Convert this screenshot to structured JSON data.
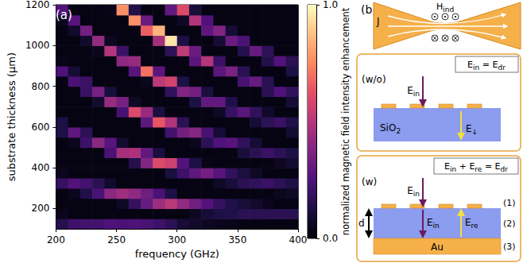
{
  "chart_data": {
    "type": "heatmap",
    "annotation": "(a)",
    "x_label": "frequency (GHz)",
    "y_label": "substrate thickness (μm)",
    "xlim": [
      200,
      400
    ],
    "xticks": [
      200,
      250,
      300,
      350,
      400
    ],
    "ylim": [
      100,
      1200
    ],
    "yticks": [
      200,
      400,
      600,
      800,
      1000,
      1200
    ],
    "grid": false,
    "x": [
      205,
      215,
      225,
      235,
      245,
      255,
      265,
      275,
      285,
      295,
      305,
      315,
      325,
      335,
      345,
      355,
      365,
      375,
      385,
      395
    ],
    "y": [
      125,
      175,
      225,
      275,
      325,
      375,
      425,
      475,
      525,
      575,
      625,
      675,
      725,
      775,
      825,
      875,
      925,
      975,
      1025,
      1075,
      1125,
      1175
    ],
    "values": [
      [
        0.15,
        0.05,
        0.03,
        0.03,
        0.19,
        0.05,
        0.03,
        0.03,
        0.03,
        0.13,
        0.13,
        0.03,
        0.03,
        0.03,
        0.03,
        0.25,
        0.04,
        0.03,
        0.03,
        0.03,
        0.05,
        0.26
      ],
      [
        0.21,
        0.03,
        0.03,
        0.05,
        0.26,
        0.03,
        0.03,
        0.03,
        0.05,
        0.29,
        0.03,
        0.03,
        0.03,
        0.03,
        0.24,
        0.1,
        0.03,
        0.03,
        0.03,
        0.08,
        0.27,
        0.03
      ],
      [
        0.22,
        0.03,
        0.03,
        0.14,
        0.22,
        0.03,
        0.03,
        0.03,
        0.21,
        0.17,
        0.03,
        0.03,
        0.03,
        0.2,
        0.2,
        0.03,
        0.03,
        0.03,
        0.08,
        0.34,
        0.03,
        0.03
      ],
      [
        0.22,
        0.03,
        0.03,
        0.24,
        0.16,
        0.03,
        0.03,
        0.03,
        0.4,
        0.03,
        0.03,
        0.03,
        0.09,
        0.35,
        0.03,
        0.03,
        0.03,
        0.05,
        0.42,
        0.03,
        0.03,
        0.03
      ],
      [
        0.25,
        0.03,
        0.03,
        0.4,
        0.08,
        0.03,
        0.03,
        0.24,
        0.27,
        0.03,
        0.03,
        0.03,
        0.43,
        0.11,
        0.03,
        0.03,
        0.03,
        0.5,
        0.06,
        0.03,
        0.03,
        0.04
      ],
      [
        0.24,
        0.03,
        0.07,
        0.45,
        0.03,
        0.03,
        0.03,
        0.46,
        0.09,
        0.03,
        0.03,
        0.23,
        0.35,
        0.03,
        0.03,
        0.03,
        0.41,
        0.2,
        0.03,
        0.03,
        0.03,
        0.77
      ],
      [
        0.25,
        0.03,
        0.19,
        0.41,
        0.03,
        0.03,
        0.15,
        0.48,
        0.03,
        0.03,
        0.03,
        0.6,
        0.07,
        0.03,
        0.03,
        0.27,
        0.43,
        0.03,
        0.03,
        0.03,
        0.77,
        0.14
      ],
      [
        0.23,
        0.03,
        0.31,
        0.33,
        0.03,
        0.03,
        0.38,
        0.3,
        0.03,
        0.03,
        0.29,
        0.43,
        0.03,
        0.03,
        0.05,
        0.7,
        0.03,
        0.03,
        0.03,
        0.66,
        0.32,
        0.03
      ],
      [
        0.21,
        0.03,
        0.44,
        0.24,
        0.03,
        0.03,
        0.6,
        0.12,
        0.03,
        0.03,
        0.64,
        0.12,
        0.03,
        0.03,
        0.52,
        0.28,
        0.03,
        0.03,
        0.46,
        0.85,
        0.03,
        0.03
      ],
      [
        0.17,
        0.03,
        0.51,
        0.13,
        0.03,
        0.12,
        0.56,
        0.03,
        0.03,
        0.22,
        0.49,
        0.03,
        0.03,
        0.18,
        0.57,
        0.03,
        0.03,
        0.17,
        0.95,
        0.03,
        0.03,
        0.3
      ],
      [
        0.1,
        0.03,
        0.42,
        0.03,
        0.03,
        0.21,
        0.26,
        0.03,
        0.03,
        0.34,
        0.16,
        0.03,
        0.03,
        0.38,
        0.13,
        0.03,
        0.03,
        0.53,
        0.13,
        0.03,
        0.07,
        0.6
      ],
      [
        0.08,
        0.06,
        0.34,
        0.03,
        0.03,
        0.29,
        0.13,
        0.03,
        0.05,
        0.39,
        0.03,
        0.03,
        0.13,
        0.34,
        0.03,
        0.03,
        0.28,
        0.32,
        0.03,
        0.03,
        0.49,
        0.11
      ],
      [
        0.06,
        0.1,
        0.26,
        0.03,
        0.03,
        0.34,
        0.04,
        0.03,
        0.17,
        0.23,
        0.03,
        0.03,
        0.3,
        0.12,
        0.03,
        0.03,
        0.5,
        0.03,
        0.03,
        0.29,
        0.25,
        0.03
      ],
      [
        0.05,
        0.13,
        0.19,
        0.03,
        0.07,
        0.27,
        0.03,
        0.03,
        0.25,
        0.1,
        0.03,
        0.07,
        0.3,
        0.03,
        0.03,
        0.28,
        0.2,
        0.03,
        0.1,
        0.38,
        0.03,
        0.03
      ],
      [
        0.04,
        0.14,
        0.14,
        0.03,
        0.11,
        0.18,
        0.03,
        0.03,
        0.27,
        0.03,
        0.03,
        0.19,
        0.14,
        0.03,
        0.03,
        0.36,
        0.03,
        0.03,
        0.32,
        0.1,
        0.03,
        0.03
      ],
      [
        0.03,
        0.16,
        0.11,
        0.03,
        0.16,
        0.12,
        0.03,
        0.11,
        0.18,
        0.03,
        0.03,
        0.28,
        0.03,
        0.03,
        0.23,
        0.16,
        0.03,
        0.15,
        0.24,
        0.03,
        0.03,
        0.03
      ],
      [
        0.03,
        0.16,
        0.08,
        0.03,
        0.18,
        0.07,
        0.03,
        0.16,
        0.1,
        0.03,
        0.1,
        0.18,
        0.03,
        0.03,
        0.31,
        0.03,
        0.03,
        0.31,
        0.03,
        0.03,
        0.03,
        0.03
      ],
      [
        0.03,
        0.16,
        0.05,
        0.03,
        0.2,
        0.03,
        0.03,
        0.2,
        0.03,
        0.03,
        0.17,
        0.08,
        0.03,
        0.16,
        0.16,
        0.03,
        0.15,
        0.17,
        0.03,
        0.03,
        0.03,
        0.03
      ],
      [
        0.03,
        0.17,
        0.03,
        0.05,
        0.17,
        0.03,
        0.06,
        0.17,
        0.03,
        0.03,
        0.2,
        0.03,
        0.03,
        0.25,
        0.03,
        0.03,
        0.26,
        0.03,
        0.03,
        0.03,
        0.03,
        0.03
      ],
      [
        0.03,
        0.16,
        0.03,
        0.07,
        0.13,
        0.03,
        0.09,
        0.13,
        0.03,
        0.09,
        0.14,
        0.03,
        0.1,
        0.18,
        0.03,
        0.13,
        0.16,
        0.03,
        0.03,
        0.03,
        0.03,
        0.03
      ]
    ],
    "colorbar": {
      "label": "normalized magnetic field intensity enhancement",
      "range": [
        0,
        1
      ],
      "ticks": [
        {
          "value": 0,
          "label": "0.0"
        },
        {
          "value": 1,
          "label": "1.0"
        }
      ]
    }
  },
  "panel_b": {
    "label": "(b)",
    "bowtie": {
      "current": "J",
      "field": {
        "main": "H",
        "sub": "ind"
      }
    },
    "without": {
      "tag": "(w/o)",
      "equation": [
        {
          "main": "E",
          "sub": "in"
        },
        "=",
        {
          "main": "E",
          "sub": "dr"
        }
      ],
      "substrate": {
        "main": "SiO",
        "sub": "2"
      },
      "incident": {
        "main": "E",
        "sub": "in"
      },
      "transmitted": {
        "main": "E",
        "sub": "↓"
      }
    },
    "with": {
      "tag": "(w)",
      "equation": [
        {
          "main": "E",
          "sub": "in"
        },
        "+",
        {
          "main": "E",
          "sub": "re"
        },
        "=",
        {
          "main": "E",
          "sub": "dr"
        }
      ],
      "incident": {
        "main": "E",
        "sub": "in"
      },
      "incident_inside": {
        "main": "E",
        "sub": "in"
      },
      "reflected": {
        "main": "E",
        "sub": "re"
      },
      "thickness": "d",
      "mirror": "Au",
      "layers": [
        "(1)",
        "(2)",
        "(3)"
      ]
    }
  }
}
